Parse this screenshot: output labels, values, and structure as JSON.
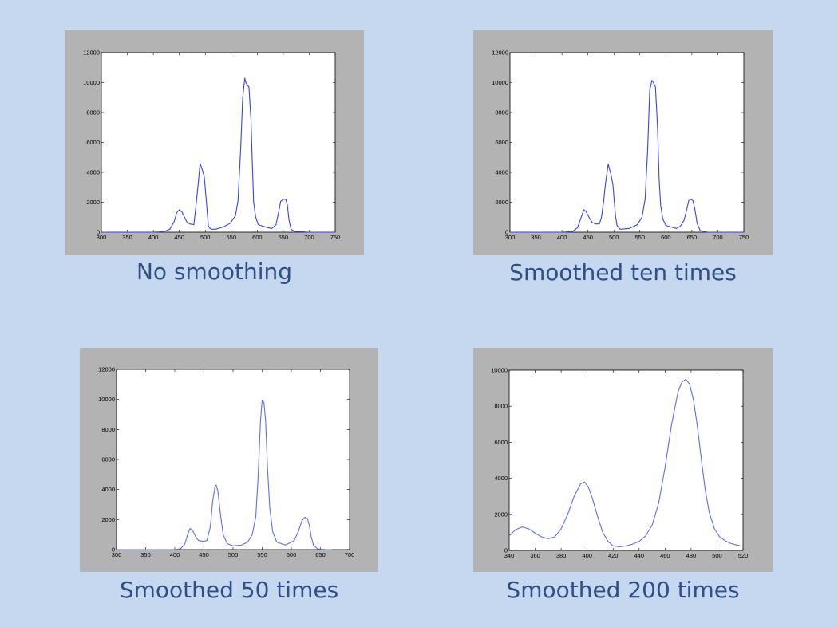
{
  "chart_data": [
    {
      "type": "line",
      "caption": "No smoothing",
      "xlim": [
        300,
        750
      ],
      "ylim": [
        0,
        12000
      ],
      "xticks": [
        300,
        350,
        400,
        450,
        500,
        550,
        600,
        650,
        700,
        750
      ],
      "yticks": [
        0,
        2000,
        4000,
        6000,
        8000,
        10000,
        12000
      ],
      "grid": false,
      "series": [
        {
          "color": "#3344ee",
          "x": [
            300,
            400,
            420,
            432,
            440,
            445,
            450,
            455,
            460,
            465,
            470,
            478,
            480,
            483,
            486,
            490,
            494,
            498,
            502,
            506,
            509,
            512,
            520,
            535,
            548,
            558,
            563,
            568,
            572,
            576,
            578,
            584,
            588,
            590,
            593,
            597,
            602,
            620,
            628,
            636,
            641,
            645,
            650,
            655,
            658,
            661,
            665,
            672,
            700,
            750
          ],
          "y": [
            0,
            0,
            30,
            200,
            700,
            1300,
            1500,
            1350,
            1000,
            650,
            550,
            500,
            1100,
            2100,
            3100,
            4600,
            4200,
            3700,
            2100,
            400,
            250,
            200,
            200,
            350,
            600,
            1100,
            2100,
            5500,
            9000,
            10300,
            10000,
            9700,
            7500,
            5200,
            2000,
            1000,
            500,
            300,
            250,
            500,
            1300,
            2050,
            2200,
            2200,
            1800,
            800,
            200,
            50,
            0,
            0
          ]
        }
      ]
    },
    {
      "type": "line",
      "caption": "Smoothed ten times",
      "xlim": [
        300,
        750
      ],
      "ylim": [
        0,
        12000
      ],
      "xticks": [
        300,
        350,
        400,
        450,
        500,
        550,
        600,
        650,
        700,
        750
      ],
      "yticks": [
        0,
        2000,
        4000,
        6000,
        8000,
        10000,
        12000
      ],
      "grid": false,
      "series": [
        {
          "color": "#3344ee",
          "x": [
            300,
            400,
            420,
            430,
            436,
            442,
            446,
            452,
            458,
            465,
            472,
            476,
            480,
            484,
            489,
            494,
            498,
            503,
            506,
            512,
            530,
            545,
            554,
            560,
            565,
            569,
            573,
            576,
            580,
            584,
            587,
            590,
            594,
            600,
            620,
            628,
            635,
            640,
            644,
            648,
            652,
            656,
            660,
            666,
            680,
            750
          ],
          "y": [
            0,
            0,
            40,
            300,
            900,
            1500,
            1400,
            1000,
            650,
            550,
            550,
            1000,
            2000,
            3300,
            4550,
            3900,
            3200,
            1100,
            450,
            200,
            250,
            500,
            1000,
            2200,
            5500,
            9500,
            10150,
            10000,
            9700,
            7000,
            3500,
            1800,
            900,
            450,
            250,
            400,
            800,
            1500,
            2100,
            2200,
            2100,
            1500,
            600,
            100,
            0,
            0
          ]
        }
      ]
    },
    {
      "type": "line",
      "caption": "Smoothed 50 times",
      "xlim": [
        300,
        700
      ],
      "ylim": [
        0,
        12000
      ],
      "xticks": [
        300,
        350,
        400,
        450,
        500,
        550,
        600,
        650,
        700
      ],
      "yticks": [
        0,
        2000,
        4000,
        6000,
        8000,
        10000,
        12000
      ],
      "grid": false,
      "series": [
        {
          "color": "#5b6ff0",
          "x": [
            300,
            400,
            410,
            417,
            422,
            426,
            431,
            436,
            441,
            448,
            455,
            461,
            465,
            469,
            471,
            474,
            478,
            483,
            490,
            500,
            515,
            525,
            533,
            539,
            543,
            547,
            550,
            553,
            556,
            559,
            563,
            568,
            575,
            590,
            605,
            612,
            618,
            623,
            628,
            631,
            634,
            638,
            645,
            660,
            670
          ],
          "y": [
            0,
            0,
            60,
            350,
            1000,
            1400,
            1250,
            850,
            600,
            550,
            600,
            1500,
            3200,
            4200,
            4300,
            3900,
            2500,
            1000,
            400,
            250,
            300,
            500,
            1000,
            2200,
            4800,
            8500,
            9950,
            9800,
            8500,
            5500,
            2800,
            1200,
            500,
            300,
            600,
            1200,
            1900,
            2150,
            2050,
            1600,
            900,
            300,
            50,
            0,
            0
          ]
        }
      ]
    },
    {
      "type": "line",
      "caption": "Smoothed 200 times",
      "xlim": [
        340,
        520
      ],
      "ylim": [
        0,
        10000
      ],
      "xticks": [
        340,
        360,
        380,
        400,
        420,
        440,
        460,
        480,
        500,
        520
      ],
      "yticks": [
        0,
        2000,
        4000,
        6000,
        8000,
        10000
      ],
      "grid": false,
      "series": [
        {
          "color": "#5b6ff0",
          "x": [
            340,
            345,
            350,
            355,
            360,
            365,
            370,
            375,
            380,
            385,
            390,
            395,
            398,
            401,
            404,
            408,
            412,
            416,
            420,
            425,
            430,
            435,
            440,
            445,
            450,
            455,
            460,
            465,
            470,
            473,
            476,
            479,
            482,
            485,
            488,
            491,
            494,
            498,
            502,
            506,
            510,
            515,
            518
          ],
          "y": [
            800,
            1150,
            1300,
            1200,
            950,
            750,
            650,
            750,
            1200,
            2000,
            3000,
            3700,
            3800,
            3500,
            2900,
            1900,
            1000,
            500,
            250,
            200,
            250,
            350,
            500,
            800,
            1400,
            2600,
            4600,
            7000,
            8800,
            9350,
            9500,
            9200,
            8300,
            6800,
            5000,
            3300,
            2100,
            1200,
            750,
            550,
            400,
            300,
            250
          ]
        }
      ]
    }
  ]
}
